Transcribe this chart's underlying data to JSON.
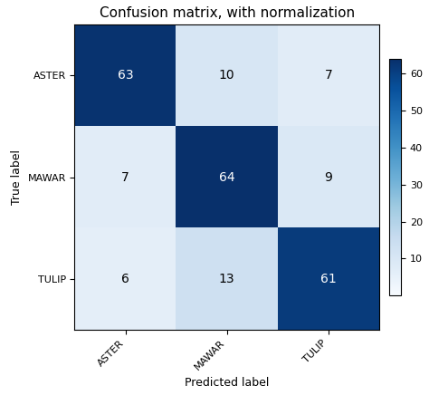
{
  "title": "Confusion matrix, with normalization",
  "classes": [
    "ASTER",
    "MAWAR",
    "TULIP"
  ],
  "matrix": [
    [
      63,
      10,
      7
    ],
    [
      7,
      64,
      9
    ],
    [
      6,
      13,
      61
    ]
  ],
  "xlabel": "Predicted label",
  "ylabel": "True label",
  "cmap": "Blues",
  "vmin": 0,
  "vmax": 64,
  "text_threshold": 32,
  "text_color_above": "white",
  "text_color_below": "black",
  "fontsize_title": 11,
  "fontsize_labels": 9,
  "fontsize_ticks": 8,
  "fontsize_cell": 10,
  "fig_width": 4.74,
  "fig_height": 4.36,
  "dpi": 100
}
